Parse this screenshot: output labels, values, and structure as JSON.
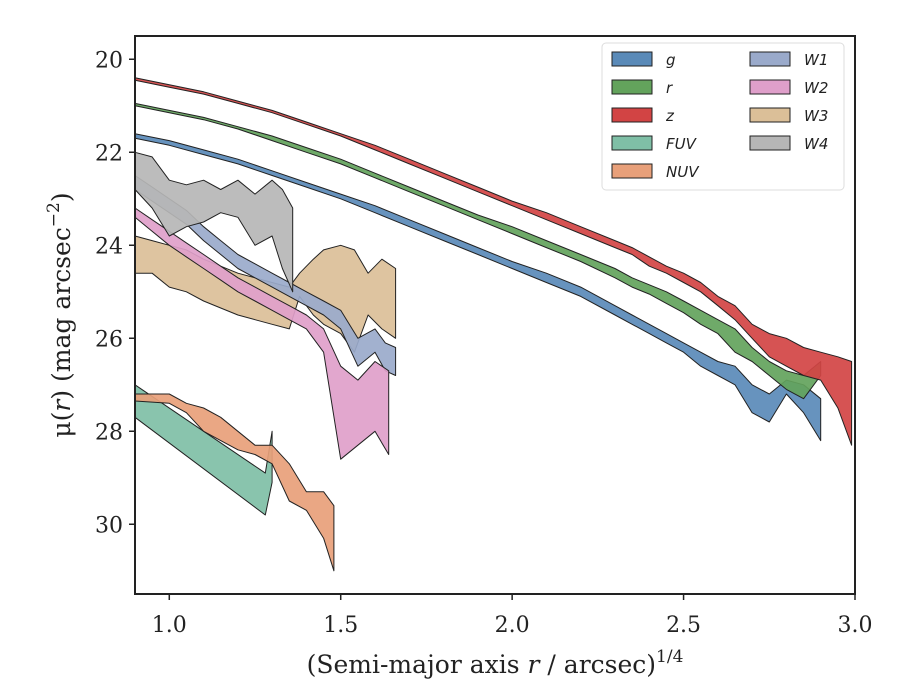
{
  "chart_data": {
    "type": "area",
    "title": "",
    "xlabel": "(Semi-major axis r / arcsec)",
    "xlabel_main": "(Semi-major axis ",
    "xlabel_var": "r",
    "xlabel_rest": " / arcsec)",
    "xlabel_exp": "1/4",
    "ylabel": "μ(r) (mag arcsec",
    "ylabel_main": "μ(",
    "ylabel_var": "r",
    "ylabel_rest": ") (mag arcsec",
    "ylabel_exp": "−2",
    "ylabel_close": ")",
    "xlim": [
      0.9,
      3.0
    ],
    "ylim": [
      31.5,
      19.5
    ],
    "y_inverted": true,
    "grid": false,
    "legend_placement": "top-right",
    "legend_columns": 2,
    "xticks": [
      1.0,
      1.5,
      2.0,
      2.5,
      3.0
    ],
    "xtick_labels": [
      "1.0",
      "1.5",
      "2.0",
      "2.5",
      "3.0"
    ],
    "yticks": [
      20,
      22,
      24,
      26,
      28,
      30
    ],
    "ytick_labels": [
      "20",
      "22",
      "24",
      "26",
      "28",
      "30"
    ],
    "series": [
      {
        "name": "W3",
        "color": "#dbbf98",
        "x": [
          0.9,
          0.95,
          1.0,
          1.05,
          1.1,
          1.15,
          1.2,
          1.25,
          1.3,
          1.35,
          1.38,
          1.42,
          1.45,
          1.5,
          1.54,
          1.58,
          1.62,
          1.66
        ],
        "upper": [
          24.6,
          24.6,
          24.9,
          25.0,
          25.2,
          25.35,
          25.5,
          25.6,
          25.7,
          25.8,
          25.1,
          25.5,
          25.7,
          25.9,
          26.3,
          25.5,
          25.8,
          26.0
        ],
        "lower": [
          23.8,
          23.9,
          24.0,
          24.1,
          24.3,
          24.45,
          24.6,
          24.7,
          24.8,
          24.9,
          24.6,
          24.3,
          24.1,
          24.0,
          24.1,
          24.6,
          24.3,
          24.5
        ]
      },
      {
        "name": "W1",
        "color": "#9aaacb",
        "x": [
          0.9,
          0.95,
          1.0,
          1.05,
          1.1,
          1.15,
          1.2,
          1.25,
          1.3,
          1.35,
          1.4,
          1.45,
          1.5,
          1.55,
          1.6,
          1.63,
          1.66
        ],
        "upper": [
          22.8,
          23.05,
          23.3,
          23.55,
          23.9,
          24.2,
          24.5,
          24.7,
          24.9,
          25.1,
          25.3,
          25.5,
          25.8,
          26.6,
          26.3,
          26.7,
          26.8
        ],
        "lower": [
          22.5,
          22.75,
          23.0,
          23.25,
          23.6,
          23.9,
          24.2,
          24.4,
          24.6,
          24.8,
          25.0,
          25.2,
          25.4,
          26.0,
          25.8,
          26.1,
          26.2
        ]
      },
      {
        "name": "W2",
        "color": "#df9fca",
        "x": [
          0.9,
          0.95,
          1.0,
          1.05,
          1.1,
          1.15,
          1.2,
          1.25,
          1.3,
          1.35,
          1.4,
          1.45,
          1.5,
          1.55,
          1.6,
          1.64
        ],
        "upper": [
          23.4,
          23.7,
          24.0,
          24.25,
          24.5,
          24.75,
          25.0,
          25.2,
          25.4,
          25.6,
          25.8,
          26.3,
          28.6,
          28.3,
          28.0,
          28.5
        ],
        "lower": [
          23.2,
          23.45,
          23.7,
          23.95,
          24.2,
          24.45,
          24.7,
          24.9,
          25.1,
          25.3,
          25.5,
          25.8,
          26.6,
          26.9,
          26.5,
          26.7
        ]
      },
      {
        "name": "W4",
        "color": "#b6b6b6",
        "x": [
          0.9,
          0.95,
          1.0,
          1.05,
          1.1,
          1.15,
          1.2,
          1.25,
          1.3,
          1.33,
          1.36
        ],
        "upper": [
          22.8,
          23.2,
          23.8,
          23.6,
          23.5,
          23.3,
          23.4,
          24.0,
          23.8,
          24.5,
          25.0
        ],
        "lower": [
          22.0,
          22.1,
          22.6,
          22.7,
          22.6,
          22.8,
          22.6,
          22.9,
          22.6,
          22.8,
          23.2
        ]
      },
      {
        "name": "FUV",
        "color": "#7fbfa6",
        "x": [
          0.9,
          1.28,
          1.3
        ],
        "upper": [
          27.7,
          29.8,
          29.1
        ],
        "lower": [
          27.0,
          28.9,
          28.0
        ]
      },
      {
        "name": "NUV",
        "color": "#e8a07a",
        "x": [
          0.9,
          1.0,
          1.05,
          1.1,
          1.15,
          1.2,
          1.25,
          1.3,
          1.35,
          1.4,
          1.45,
          1.48
        ],
        "upper": [
          27.35,
          27.4,
          27.6,
          28.0,
          28.2,
          28.4,
          28.5,
          28.7,
          29.5,
          29.7,
          30.3,
          31.0
        ],
        "lower": [
          27.2,
          27.2,
          27.4,
          27.5,
          27.7,
          28.0,
          28.3,
          28.3,
          28.7,
          29.3,
          29.3,
          29.6
        ]
      },
      {
        "name": "g",
        "color": "#5a8ab8",
        "x": [
          0.9,
          1.0,
          1.1,
          1.2,
          1.3,
          1.4,
          1.5,
          1.6,
          1.7,
          1.8,
          1.9,
          2.0,
          2.1,
          2.2,
          2.3,
          2.35,
          2.4,
          2.45,
          2.5,
          2.55,
          2.6,
          2.65,
          2.7,
          2.75,
          2.8,
          2.85,
          2.9
        ],
        "upper": [
          21.7,
          21.85,
          22.05,
          22.25,
          22.5,
          22.75,
          23.0,
          23.3,
          23.6,
          23.9,
          24.2,
          24.5,
          24.8,
          25.1,
          25.5,
          25.7,
          25.9,
          26.1,
          26.3,
          26.6,
          26.8,
          27.0,
          27.6,
          27.8,
          27.2,
          27.6,
          28.2
        ],
        "lower": [
          21.6,
          21.75,
          21.95,
          22.15,
          22.4,
          22.65,
          22.9,
          23.15,
          23.45,
          23.75,
          24.05,
          24.35,
          24.6,
          24.9,
          25.3,
          25.5,
          25.7,
          25.9,
          26.1,
          26.3,
          26.5,
          26.6,
          27.0,
          27.2,
          26.9,
          27.0,
          27.3
        ]
      },
      {
        "name": "r",
        "color": "#63a35c",
        "x": [
          0.9,
          1.0,
          1.1,
          1.2,
          1.3,
          1.4,
          1.5,
          1.6,
          1.7,
          1.8,
          1.9,
          2.0,
          2.1,
          2.2,
          2.3,
          2.35,
          2.4,
          2.45,
          2.5,
          2.55,
          2.6,
          2.65,
          2.7,
          2.75,
          2.8,
          2.85,
          2.9
        ],
        "upper": [
          21.0,
          21.15,
          21.3,
          21.5,
          21.75,
          22.0,
          22.25,
          22.55,
          22.85,
          23.15,
          23.45,
          23.75,
          24.05,
          24.35,
          24.7,
          24.9,
          25.05,
          25.25,
          25.45,
          25.7,
          25.9,
          26.3,
          26.5,
          26.8,
          27.1,
          27.3,
          26.8
        ],
        "lower": [
          20.95,
          21.1,
          21.25,
          21.45,
          21.65,
          21.9,
          22.15,
          22.45,
          22.75,
          23.05,
          23.35,
          23.6,
          23.9,
          24.2,
          24.5,
          24.7,
          24.85,
          25.0,
          25.2,
          25.4,
          25.6,
          25.8,
          26.2,
          26.5,
          26.7,
          26.8,
          26.5
        ]
      },
      {
        "name": "z",
        "color": "#d24444",
        "x": [
          0.9,
          1.0,
          1.1,
          1.2,
          1.3,
          1.4,
          1.5,
          1.6,
          1.7,
          1.8,
          1.9,
          2.0,
          2.1,
          2.2,
          2.3,
          2.35,
          2.4,
          2.45,
          2.5,
          2.55,
          2.6,
          2.65,
          2.7,
          2.75,
          2.8,
          2.85,
          2.9,
          2.95,
          2.99
        ],
        "upper": [
          20.45,
          20.6,
          20.75,
          20.95,
          21.15,
          21.4,
          21.65,
          21.95,
          22.25,
          22.55,
          22.85,
          23.15,
          23.45,
          23.75,
          24.05,
          24.2,
          24.45,
          24.6,
          24.8,
          25.0,
          25.3,
          25.6,
          26.0,
          26.4,
          26.6,
          26.8,
          26.9,
          27.5,
          28.3
        ],
        "lower": [
          20.4,
          20.55,
          20.7,
          20.9,
          21.1,
          21.35,
          21.6,
          21.85,
          22.15,
          22.45,
          22.75,
          23.05,
          23.3,
          23.6,
          23.9,
          24.05,
          24.25,
          24.45,
          24.6,
          24.8,
          25.1,
          25.3,
          25.7,
          25.9,
          26.0,
          26.2,
          26.3,
          26.4,
          26.5
        ]
      }
    ],
    "legend_order": [
      "g",
      "r",
      "z",
      "FUV",
      "NUV",
      "W1",
      "W2",
      "W3",
      "W4"
    ]
  }
}
